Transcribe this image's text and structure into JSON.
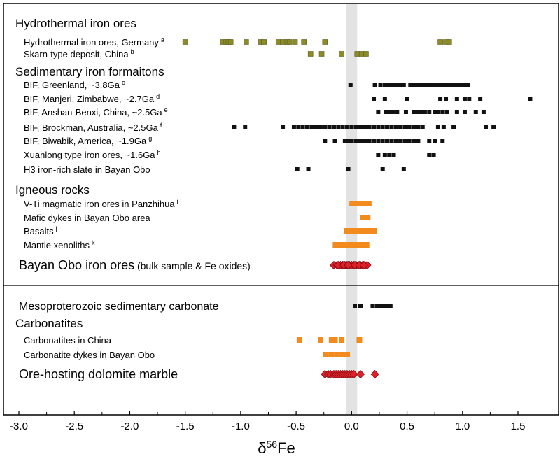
{
  "chart_data": {
    "type": "scatter",
    "xlabel_base": "δ",
    "xlabel_sup": "56",
    "xlabel_tail": "Fe",
    "xlim": [
      -3.1,
      1.65
    ],
    "xticks": [
      -3.0,
      -2.5,
      -2.0,
      -1.5,
      -1.0,
      -0.5,
      0.0,
      0.5,
      1.0,
      1.5
    ],
    "tick_labels": [
      "-3.0",
      "-2.5",
      "-2.0",
      "-1.5",
      "-1.0",
      "-0.5",
      "0.0",
      "0.5",
      "1.0",
      "1.5"
    ],
    "gray_band": [
      -0.05,
      0.05
    ],
    "colors": {
      "olive": "#8b8b2a",
      "black": "#111111",
      "orange": "#f28a1e",
      "red": "#e0202a",
      "band": "#e3e3e3"
    },
    "headers": [
      {
        "text": "Hydrothermal iron ores",
        "row": 0
      },
      {
        "text": "Sedimentary iron formaitons",
        "row": 3
      },
      {
        "text": "Igneous rocks",
        "row": 11
      },
      {
        "text": "Carbonatites",
        "row": 20
      }
    ],
    "series": [
      {
        "label": "Hydrothermal iron ores, Germany",
        "sup": "a",
        "row": 1,
        "style": "olive",
        "values": [
          -1.5,
          -1.16,
          -1.13,
          -1.11,
          -1.09,
          -0.95,
          -0.82,
          -0.79,
          -0.66,
          -0.62,
          -0.58,
          -0.56,
          -0.51,
          -0.43,
          -0.24,
          0.8,
          0.85,
          0.88
        ]
      },
      {
        "label": "Skarn-type deposit, China",
        "sup": "b",
        "row": 2,
        "style": "olive",
        "values": [
          -0.37,
          -0.27,
          -0.09,
          0.05,
          0.09,
          0.13
        ]
      },
      {
        "label": "BIF, Greenland, ~3.8Ga",
        "sup": "c",
        "row": 4,
        "style": "black",
        "values": [
          -0.01,
          0.21,
          0.26,
          0.3,
          0.33,
          0.35,
          0.37,
          0.39,
          0.41,
          0.44,
          0.47,
          0.53,
          0.56,
          0.58,
          0.6,
          0.62,
          0.64,
          0.66,
          0.68,
          0.7,
          0.72,
          0.74,
          0.76,
          0.78,
          0.8,
          0.82,
          0.84,
          0.86,
          0.88,
          0.9,
          0.92,
          0.94,
          0.96,
          0.98,
          1.0,
          1.02,
          1.05
        ]
      },
      {
        "label": "BIF, Manjeri, Zimbabwe, ~2.7Ga",
        "sup": "d",
        "row": 5,
        "style": "black",
        "values": [
          0.2,
          0.3,
          0.5,
          0.8,
          0.85,
          0.95,
          1.02,
          1.06,
          1.16,
          1.61
        ]
      },
      {
        "label": "BIF, Anshan-Benxi, China, ~2.5Ga",
        "sup": "e",
        "row": 6,
        "style": "black",
        "values": [
          0.24,
          0.31,
          0.34,
          0.37,
          0.41,
          0.49,
          0.56,
          0.6,
          0.63,
          0.66,
          0.7,
          0.75,
          0.78,
          0.82,
          0.86,
          0.95,
          1.02,
          1.12,
          1.19
        ]
      },
      {
        "label": "BIF, Brockman, Australia, ~2.5Ga",
        "sup": "f",
        "row": 7,
        "style": "black",
        "values": [
          -1.06,
          -0.96,
          -0.62,
          -0.52,
          -0.48,
          -0.44,
          -0.4,
          -0.36,
          -0.32,
          -0.28,
          -0.24,
          -0.2,
          -0.16,
          -0.12,
          -0.08,
          -0.04,
          0.0,
          0.04,
          0.08,
          0.12,
          0.16,
          0.2,
          0.24,
          0.28,
          0.32,
          0.36,
          0.4,
          0.44,
          0.48,
          0.52,
          0.56,
          0.6,
          0.64,
          0.78,
          0.83,
          0.92,
          1.21,
          1.28
        ]
      },
      {
        "label": "BIF, Biwabik, America, ~1.9Ga",
        "sup": "g",
        "row": 8,
        "style": "black",
        "values": [
          -0.24,
          -0.15,
          -0.06,
          -0.03,
          0.0,
          0.04,
          0.08,
          0.12,
          0.16,
          0.2,
          0.24,
          0.28,
          0.32,
          0.36,
          0.4,
          0.44,
          0.48,
          0.52,
          0.56,
          0.6,
          0.7,
          0.75,
          0.82
        ]
      },
      {
        "label": "Xuanlong type iron ores, ~1.6Ga",
        "sup": "h",
        "row": 9,
        "style": "black",
        "values": [
          0.24,
          0.3,
          0.34,
          0.38,
          0.7,
          0.74
        ]
      },
      {
        "label": "H3 iron-rich slate in Bayan Obo",
        "sup": "",
        "row": 10,
        "style": "black",
        "values": [
          -0.49,
          -0.39,
          -0.03,
          0.28,
          0.47
        ]
      },
      {
        "label": "V-Ti magmatic iron ores in Panzhihua",
        "sup": "i",
        "row": 12,
        "style": "orange",
        "range": [
          -0.02,
          0.18
        ]
      },
      {
        "label": "Mafic dykes in Bayan Obo area",
        "sup": "",
        "row": 13,
        "style": "orange",
        "range": [
          0.08,
          0.17
        ]
      },
      {
        "label": "Basalts",
        "sup": "j",
        "row": 14,
        "style": "orange",
        "range": [
          -0.07,
          0.23
        ]
      },
      {
        "label": "Mantle xenoliths",
        "sup": "k",
        "row": 15,
        "style": "orange",
        "range": [
          -0.17,
          0.16
        ]
      },
      {
        "label": "Bayan Obo iron ores",
        "label_small": " (bulk sample & Fe oxides)",
        "sup": "",
        "row": 16,
        "style": "red",
        "big": true,
        "values": [
          -0.16,
          -0.13,
          -0.1,
          -0.08,
          -0.06,
          -0.04,
          -0.02,
          0.0,
          0.02,
          0.04,
          0.06,
          0.08,
          0.1,
          0.12,
          0.14,
          -0.12,
          -0.07,
          -0.03,
          0.03,
          0.07,
          0.11
        ]
      },
      {
        "label": "Mesoproterozoic sedimentary carbonate",
        "sup": "",
        "row": 19,
        "style": "black",
        "big": true,
        "normal_size": true,
        "values": [
          0.03,
          0.08,
          0.19,
          0.23,
          0.26,
          0.29,
          0.32,
          0.35
        ]
      },
      {
        "label": "Carbonatites in China",
        "sup": "",
        "row": 21,
        "style": "orange_seg",
        "values": [
          -0.47,
          -0.28,
          -0.18,
          -0.15,
          -0.09,
          0.07
        ]
      },
      {
        "label": "Carbonatite dykes in Bayan Obo",
        "sup": "",
        "row": 22,
        "style": "orange_seg",
        "values": [
          -0.23,
          -0.18,
          -0.13,
          -0.08,
          -0.04
        ]
      },
      {
        "label": "Ore-hosting dolomite marble",
        "sup": "",
        "row": 23,
        "style": "red",
        "big": true,
        "values": [
          -0.24,
          -0.21,
          -0.19,
          -0.16,
          -0.14,
          -0.12,
          -0.1,
          -0.08,
          -0.06,
          -0.04,
          -0.02,
          0.0,
          0.02,
          0.08,
          0.21
        ]
      }
    ]
  }
}
